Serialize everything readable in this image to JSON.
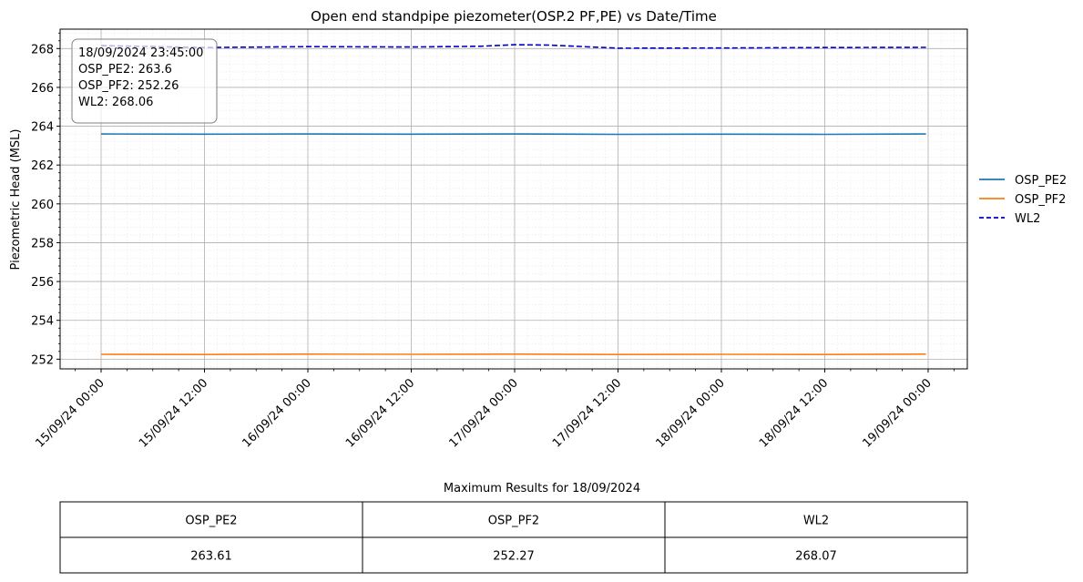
{
  "chart_data": {
    "type": "line",
    "title": "Open end standpipe piezometer(OSP.2 PF,PE) vs Date/Time",
    "xlabel": "",
    "ylabel": "Piezometric Head (MSL)",
    "x_start": "15/09/24 00:00",
    "x_end": "19/09/24 00:00",
    "x_major_ticks": [
      "15/09/24 00:00",
      "15/09/24 12:00",
      "16/09/24 00:00",
      "16/09/24 12:00",
      "17/09/24 00:00",
      "17/09/24 12:00",
      "18/09/24 00:00",
      "18/09/24 12:00",
      "19/09/24 00:00"
    ],
    "ylim": [
      251.5,
      269
    ],
    "y_ticks": [
      252,
      254,
      256,
      258,
      260,
      262,
      264,
      266,
      268
    ],
    "grid": true,
    "legend_position": "right-outside",
    "series": [
      {
        "name": "OSP_PE2",
        "color": "#1f77b4",
        "style": "solid",
        "x": [
          "15/09/24 00:00",
          "15/09/24 12:00",
          "16/09/24 00:00",
          "16/09/24 12:00",
          "17/09/24 00:00",
          "17/09/24 12:00",
          "18/09/24 00:00",
          "18/09/24 12:00",
          "18/09/24 23:45"
        ],
        "values": [
          263.6,
          263.59,
          263.6,
          263.59,
          263.6,
          263.58,
          263.59,
          263.58,
          263.6
        ]
      },
      {
        "name": "OSP_PF2",
        "color": "#ff7f0e",
        "style": "solid",
        "x": [
          "15/09/24 00:00",
          "15/09/24 12:00",
          "16/09/24 00:00",
          "16/09/24 12:00",
          "17/09/24 00:00",
          "17/09/24 12:00",
          "18/09/24 00:00",
          "18/09/24 12:00",
          "18/09/24 23:45"
        ],
        "values": [
          252.25,
          252.24,
          252.26,
          252.25,
          252.26,
          252.24,
          252.25,
          252.24,
          252.26
        ]
      },
      {
        "name": "WL2",
        "color": "#0000cc",
        "style": "dashed",
        "x": [
          "15/09/24 00:00",
          "15/09/24 12:00",
          "16/09/24 00:00",
          "16/09/24 12:00",
          "16/09/24 20:00",
          "17/09/24 00:00",
          "17/09/24 04:00",
          "17/09/24 12:00",
          "18/09/24 00:00",
          "18/09/24 12:00",
          "18/09/24 23:45"
        ],
        "values": [
          268.15,
          268.05,
          268.1,
          268.08,
          268.12,
          268.2,
          268.18,
          268.02,
          268.03,
          268.05,
          268.06
        ]
      }
    ],
    "tooltip": {
      "lines": [
        "18/09/2024 23:45:00",
        "OSP_PE2: 263.6",
        "OSP_PF2: 252.26",
        "WL2: 268.06"
      ]
    }
  },
  "table": {
    "title": "Maximum Results for 18/09/2024",
    "headers": [
      "OSP_PE2",
      "OSP_PF2",
      "WL2"
    ],
    "rows": [
      [
        "263.61",
        "252.27",
        "268.07"
      ]
    ]
  }
}
